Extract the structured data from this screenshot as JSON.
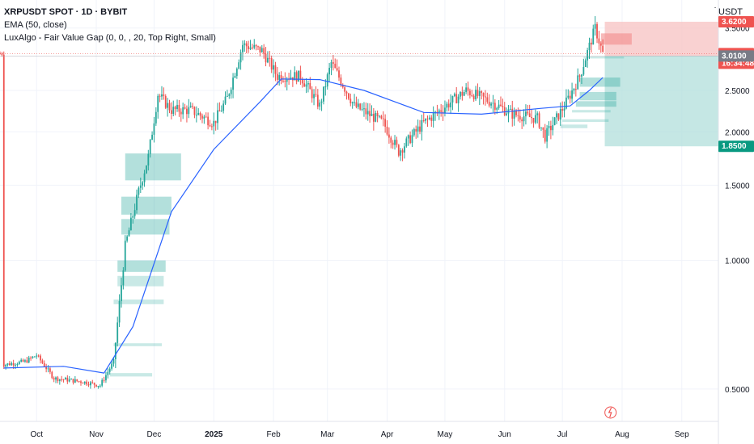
{
  "header": {
    "symbol": "XRPUSDT SPOT · 1D · BYBIT",
    "indicator1": "EMA (50, close)",
    "indicator2": "LuxAlgo - Fair Value Gap (0, 0, , 20, Top Right, Small)",
    "unit": "USDT"
  },
  "colors": {
    "up": "#26a69a",
    "down": "#ef5350",
    "ema": "#2962ff",
    "fvg": "#26a69a",
    "stop_zone": "#f7c5c5",
    "target_zone": "#b2dfdb"
  },
  "chart_data": {
    "type": "candlestick",
    "y_scale": "log",
    "ylim": [
      0.42,
      4.0
    ],
    "y_ticks": [
      "0.5000",
      "1.0000",
      "1.5000",
      "2.0000",
      "2.5000",
      "3.5000"
    ],
    "x_ticks": [
      "Oct",
      "Nov",
      "Dec",
      "2025",
      "Feb",
      "Mar",
      "Apr",
      "May",
      "Jun",
      "Jul",
      "Aug",
      "Sep"
    ],
    "ema_label": "EMA 50",
    "price_tags": [
      {
        "label": "3.6200",
        "value": 3.62,
        "color": "#ef5350"
      },
      {
        "label": "3.0493",
        "sub": "16:34:48",
        "value": 3.0493,
        "color": "#ef5350"
      },
      {
        "label": "3.0100",
        "value": 3.01,
        "color": "#787b86"
      },
      {
        "label": "1.8500",
        "value": 1.85,
        "color": "#089981"
      }
    ],
    "position": {
      "entry": 3.01,
      "stop": 3.62,
      "target": 1.85
    },
    "price_path": [
      [
        "2024-09-14",
        0.57
      ],
      [
        "2024-09-25",
        0.58
      ],
      [
        "2024-10-01",
        0.6
      ],
      [
        "2024-10-10",
        0.53
      ],
      [
        "2024-10-25",
        0.52
      ],
      [
        "2024-11-03",
        0.51
      ],
      [
        "2024-11-10",
        0.58
      ],
      [
        "2024-11-16",
        1.08
      ],
      [
        "2024-11-23",
        1.45
      ],
      [
        "2024-11-28",
        1.75
      ],
      [
        "2024-12-03",
        2.45
      ],
      [
        "2024-12-10",
        2.25
      ],
      [
        "2024-12-20",
        2.25
      ],
      [
        "2025-01-01",
        2.1
      ],
      [
        "2025-01-08",
        2.4
      ],
      [
        "2025-01-16",
        3.2
      ],
      [
        "2025-01-26",
        3.1
      ],
      [
        "2025-02-03",
        2.7
      ],
      [
        "2025-02-15",
        2.7
      ],
      [
        "2025-02-25",
        2.3
      ],
      [
        "2025-03-03",
        2.9
      ],
      [
        "2025-03-15",
        2.3
      ],
      [
        "2025-03-30",
        2.1
      ],
      [
        "2025-04-07",
        1.8
      ],
      [
        "2025-04-20",
        2.1
      ],
      [
        "2025-05-12",
        2.5
      ],
      [
        "2025-05-25",
        2.35
      ],
      [
        "2025-06-05",
        2.2
      ],
      [
        "2025-06-18",
        2.15
      ],
      [
        "2025-06-22",
        1.95
      ],
      [
        "2025-07-02",
        2.3
      ],
      [
        "2025-07-10",
        2.7
      ],
      [
        "2025-07-18",
        3.5
      ],
      [
        "2025-07-22",
        3.05
      ]
    ],
    "ema_path": [
      [
        "2024-09-14",
        0.56
      ],
      [
        "2024-10-15",
        0.565
      ],
      [
        "2024-11-05",
        0.545
      ],
      [
        "2024-11-20",
        0.7
      ],
      [
        "2024-12-10",
        1.3
      ],
      [
        "2025-01-01",
        1.82
      ],
      [
        "2025-01-25",
        2.35
      ],
      [
        "2025-02-05",
        2.66
      ],
      [
        "2025-02-25",
        2.65
      ],
      [
        "2025-03-20",
        2.5
      ],
      [
        "2025-04-20",
        2.22
      ],
      [
        "2025-05-20",
        2.2
      ],
      [
        "2025-06-20",
        2.27
      ],
      [
        "2025-07-05",
        2.3
      ],
      [
        "2025-07-15",
        2.5
      ],
      [
        "2025-07-22",
        2.68
      ]
    ],
    "fvg_zones": [
      {
        "x0": "2024-11-16",
        "x1": "2024-12-15",
        "y0": 1.78,
        "y1": 1.54,
        "active": true
      },
      {
        "x0": "2024-11-14",
        "x1": "2024-12-10",
        "y0": 1.41,
        "y1": 1.28,
        "active": true
      },
      {
        "x0": "2024-11-14",
        "x1": "2024-12-09",
        "y0": 1.25,
        "y1": 1.15,
        "active": true
      },
      {
        "x0": "2024-11-12",
        "x1": "2024-12-07",
        "y0": 1.0,
        "y1": 0.94,
        "active": true
      },
      {
        "x0": "2024-11-12",
        "x1": "2024-12-06",
        "y0": 0.92,
        "y1": 0.87,
        "active": false
      },
      {
        "x0": "2024-11-10",
        "x1": "2024-12-06",
        "y0": 0.81,
        "y1": 0.79,
        "active": false
      },
      {
        "x0": "2024-11-10",
        "x1": "2024-12-05",
        "y0": 0.64,
        "y1": 0.63,
        "active": false
      },
      {
        "x0": "2024-11-08",
        "x1": "2024-11-30",
        "y0": 0.545,
        "y1": 0.535,
        "active": false
      },
      {
        "x0": "2025-07-10",
        "x1": "2025-07-31",
        "y0": 2.68,
        "y1": 2.55,
        "active": true
      },
      {
        "x0": "2025-07-10",
        "x1": "2025-07-29",
        "y0": 2.48,
        "y1": 2.37,
        "active": true
      },
      {
        "x0": "2025-07-08",
        "x1": "2025-07-29",
        "y0": 2.36,
        "y1": 2.29,
        "active": true
      },
      {
        "x0": "2025-07-06",
        "x1": "2025-07-26",
        "y0": 2.25,
        "y1": 2.22,
        "active": false
      },
      {
        "x0": "2025-07-01",
        "x1": "2025-07-25",
        "y0": 2.14,
        "y1": 2.11,
        "active": false
      },
      {
        "x0": "2025-06-30",
        "x1": "2025-07-14",
        "y0": 2.08,
        "y1": 2.04,
        "active": false
      },
      {
        "x0": "2025-07-12",
        "x1": "2025-08-02",
        "y0": 3.0,
        "y1": 2.97,
        "active": false
      }
    ],
    "red_box": {
      "x0": "2025-07-21",
      "x1": "2025-08-06",
      "y0": 3.4,
      "y1": 3.2
    }
  }
}
